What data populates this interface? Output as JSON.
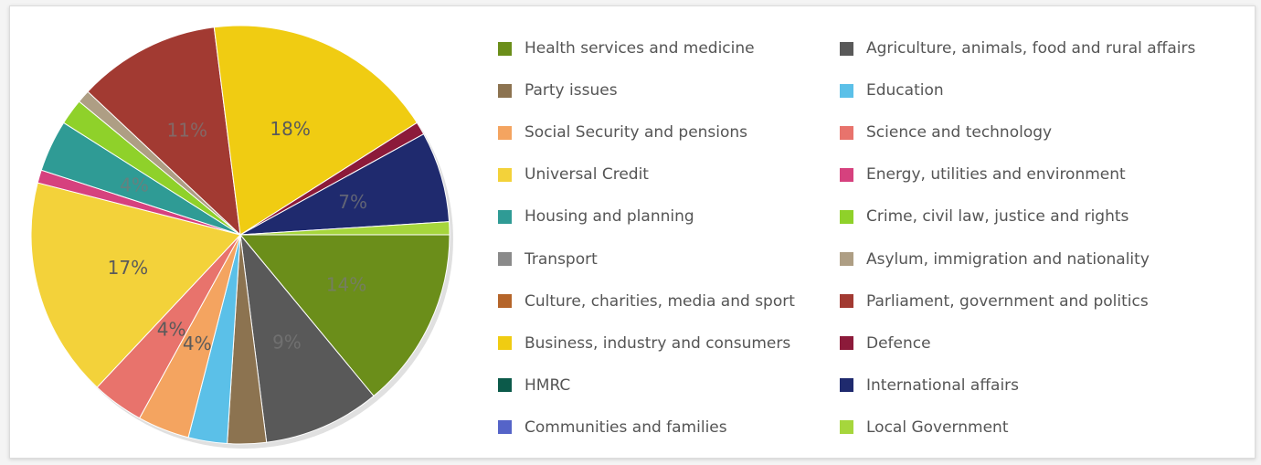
{
  "chart_data": {
    "type": "pie",
    "slices": [
      {
        "label": "Health services and medicine",
        "value": 14,
        "color": "#6b8e1a",
        "data_label": "14%"
      },
      {
        "label": "Agriculture, animals, food and rural affairs",
        "value": 9,
        "color": "#595959",
        "data_label": "9%"
      },
      {
        "label": "Party issues",
        "value": 3,
        "color": "#8c7350"
      },
      {
        "label": "Education",
        "value": 3,
        "color": "#5bc0e8"
      },
      {
        "label": "Social Security and pensions",
        "value": 4,
        "color": "#f4a460",
        "data_label": "4%"
      },
      {
        "label": "Science and technology",
        "value": 4,
        "color": "#e8736c",
        "data_label": "4%"
      },
      {
        "label": "Universal Credit",
        "value": 17,
        "color": "#f3d23a",
        "data_label": "17%"
      },
      {
        "label": "Energy, utilities and environment",
        "value": 1,
        "color": "#d6417e"
      },
      {
        "label": "Housing and planning",
        "value": 4,
        "color": "#2f9b95",
        "data_label": "4%"
      },
      {
        "label": "Crime, civil law, justice and rights",
        "value": 2,
        "color": "#8fd12a"
      },
      {
        "label": "Transport",
        "value": 0,
        "color": "#8a8a8a"
      },
      {
        "label": "Asylum, immigration and nationality",
        "value": 1,
        "color": "#ae9e84"
      },
      {
        "label": "Culture, charities, media and sport",
        "value": 0,
        "color": "#b5652a"
      },
      {
        "label": "Parliament, government and politics",
        "value": 11,
        "color": "#a23a32",
        "data_label": "11%"
      },
      {
        "label": "Business, industry and consumers",
        "value": 18,
        "color": "#f0cc12",
        "data_label": "18%"
      },
      {
        "label": "Defence",
        "value": 1,
        "color": "#8c1a3a"
      },
      {
        "label": "HMRC",
        "value": 0,
        "color": "#0c5a4a"
      },
      {
        "label": "International affairs",
        "value": 7,
        "color": "#1f2a6e",
        "data_label": "7%"
      },
      {
        "label": "Communities and families",
        "value": 0,
        "color": "#5564c8"
      },
      {
        "label": "Local Government",
        "value": 1,
        "color": "#a6d63c"
      }
    ],
    "legend": {
      "placement": "right",
      "items": [
        "Health services and medicine",
        "Agriculture, animals, food and rural affairs",
        "Party issues",
        "Education",
        "Social Security and pensions",
        "Science and technology",
        "Universal Credit",
        "Energy, utilities and environment",
        "Housing and planning",
        "Crime, civil law, justice and rights",
        "Transport",
        "Asylum, immigration and nationality",
        "Culture, charities, media and sport",
        "Parliament, government and politics",
        "Business, industry and consumers",
        "Defence",
        "HMRC",
        "International affairs",
        "Communities and families",
        "Local Government"
      ]
    }
  }
}
